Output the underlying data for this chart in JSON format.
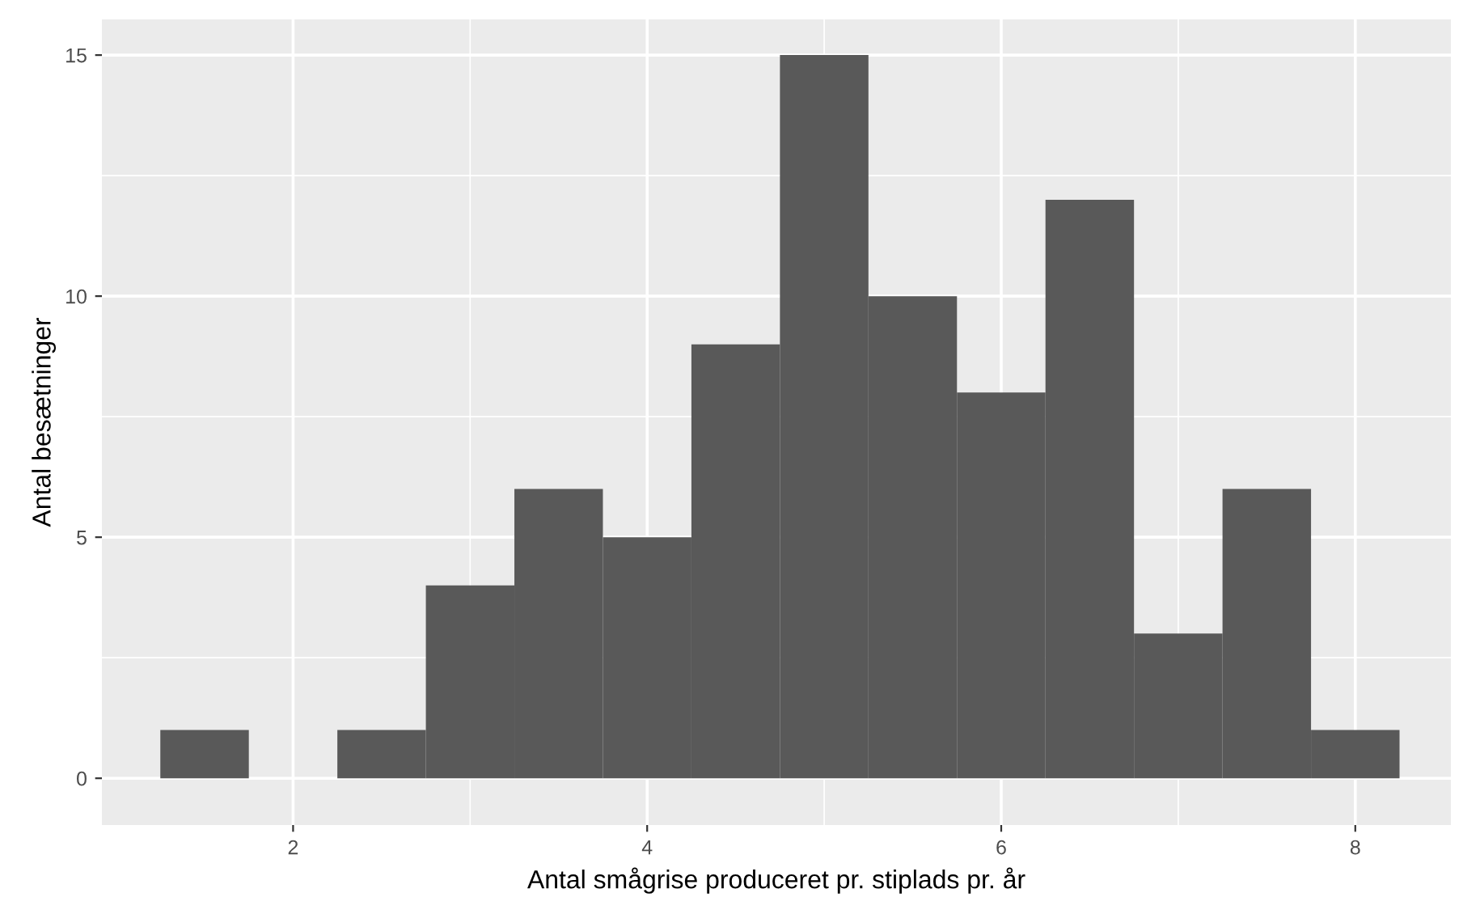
{
  "chart_data": {
    "type": "histogram",
    "xlabel": "Antal smågrise produceret pr. stiplads pr. år",
    "ylabel": "Antal besætninger",
    "bins": [
      1.25,
      1.75,
      2.25,
      2.75,
      3.25,
      3.75,
      4.25,
      4.75,
      5.25,
      5.75,
      6.25,
      6.75,
      7.25,
      7.75,
      8.25
    ],
    "values": [
      1,
      0,
      1,
      4,
      6,
      5,
      9,
      15,
      10,
      8,
      12,
      3,
      6,
      1
    ],
    "color": "#595959",
    "xlim": [
      0.92,
      8.54
    ],
    "ylim": [
      -0.97,
      15.74
    ],
    "xticks": [
      2,
      4,
      6,
      8
    ],
    "yticks": [
      0,
      5,
      10,
      15
    ],
    "grid": true
  }
}
